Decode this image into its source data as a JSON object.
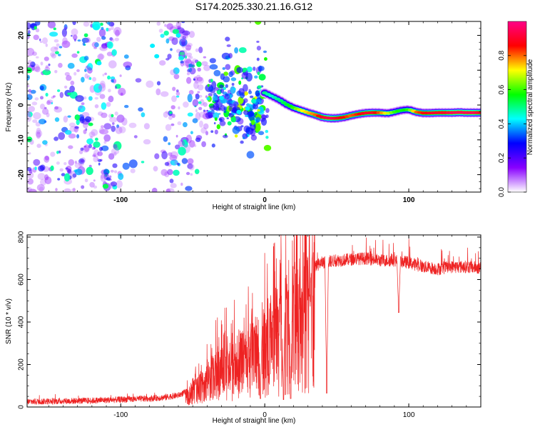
{
  "figure": {
    "title": "S174.2025.330.21.16.G12"
  },
  "chart_data": [
    {
      "type": "heatmap",
      "title": "S174.2025.330.21.16.G12",
      "xlabel": "Height of straight line (km)",
      "ylabel": "Frequency (Hz)",
      "xlim": [
        -165,
        150
      ],
      "ylim": [
        -25,
        24
      ],
      "x_ticks": [
        -100,
        0,
        100
      ],
      "y_ticks": [
        -20,
        -10,
        0,
        10,
        20
      ],
      "colorbar": {
        "label": "Normalized spectral amplitude",
        "range": [
          0,
          1
        ],
        "ticks": [
          0,
          0.2,
          0.4,
          0.6,
          0.8
        ],
        "colors": [
          "#ffffff",
          "#8800ff",
          "#0000ff",
          "#00ffff",
          "#00ff00",
          "#ffff00",
          "#ff0000",
          "#ff0088"
        ]
      },
      "ridge": {
        "x": [
          0,
          5,
          10,
          15,
          20,
          25,
          30,
          35,
          40,
          45,
          50,
          55,
          60,
          65,
          70,
          75,
          80,
          85,
          90,
          95,
          100,
          105,
          110,
          115,
          120,
          125,
          130,
          135,
          140,
          145,
          150
        ],
        "y": [
          3.5,
          2.5,
          1.5,
          0.2,
          -0.8,
          -1.5,
          -2.2,
          -2.8,
          -3.5,
          -3.8,
          -3.8,
          -3.5,
          -3.0,
          -2.6,
          -2.3,
          -2.2,
          -2.2,
          -2.4,
          -2.0,
          -1.5,
          -1.3,
          -2.0,
          -2.3,
          -2.3,
          -2.2,
          -2.2,
          -2.2,
          -2.1,
          -2.2,
          -2.2,
          -2.2
        ],
        "amplitude": [
          0.5,
          0.45,
          0.5,
          0.55,
          0.6,
          0.7,
          0.75,
          0.8,
          0.9,
          0.95,
          0.9,
          0.85,
          0.8,
          0.85,
          0.9,
          0.9,
          0.8,
          0.7,
          0.6,
          0.55,
          0.6,
          0.8,
          0.85,
          0.9,
          0.9,
          0.9,
          0.95,
          0.95,
          0.95,
          0.95,
          0.9
        ]
      },
      "scatter_region": {
        "x_range": [
          -165,
          2
        ],
        "y_range": [
          -25,
          24
        ]
      }
    },
    {
      "type": "line",
      "xlabel": "Height of straight line (km)",
      "ylabel": "SNR (10 * v/v)",
      "xlim": [
        -165,
        150
      ],
      "ylim": [
        0,
        810
      ],
      "x_ticks": [
        -100,
        0,
        100
      ],
      "y_ticks": [
        0,
        200,
        400,
        600,
        800
      ],
      "color": "#ee2222",
      "envelope": {
        "x": [
          -165,
          -140,
          -120,
          -100,
          -80,
          -70,
          -60,
          -55,
          -50,
          -45,
          -40,
          -35,
          -30,
          -25,
          -20,
          -15,
          -10,
          -5,
          0,
          5,
          10,
          15,
          20,
          25,
          30,
          35,
          40,
          50,
          60,
          70,
          80,
          90,
          100,
          110,
          120,
          130,
          140,
          150
        ],
        "y": [
          25,
          28,
          30,
          35,
          40,
          45,
          55,
          70,
          90,
          130,
          170,
          210,
          240,
          260,
          280,
          300,
          330,
          360,
          390,
          420,
          460,
          520,
          570,
          600,
          640,
          665,
          680,
          690,
          695,
          700,
          690,
          690,
          680,
          660,
          650,
          660,
          660,
          655
        ]
      },
      "dips": [
        {
          "x": 43,
          "y": 65
        },
        {
          "x": 93,
          "y": 445
        },
        {
          "x": 18,
          "y": 40
        },
        {
          "x": 13,
          "y": 35
        },
        {
          "x": -3,
          "y": 40
        }
      ]
    }
  ]
}
